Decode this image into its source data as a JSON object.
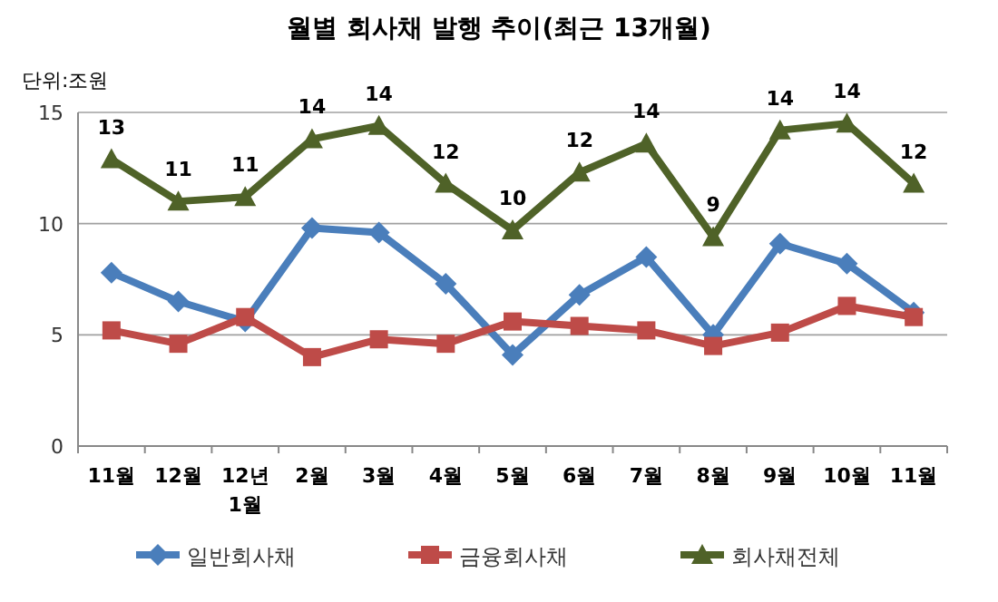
{
  "chart_data": {
    "type": "line",
    "title": "월별 회사채 발행 추이(최근 13개월)",
    "ylabel": "단위:조원",
    "categories": [
      "11월",
      "12월",
      "12년 1월",
      "2월",
      "3월",
      "4월",
      "5월",
      "6월",
      "7월",
      "8월",
      "9월",
      "10월",
      "11월"
    ],
    "ylim": [
      0,
      15
    ],
    "yticks": [
      0,
      5,
      10,
      15
    ],
    "grid": "y",
    "legend": "bottom",
    "series": [
      {
        "name": "일반회사채",
        "color": "#4a7ebb",
        "marker": "diamond",
        "values": [
          7.8,
          6.5,
          5.6,
          9.8,
          9.6,
          7.3,
          4.1,
          6.8,
          8.5,
          5.0,
          9.1,
          8.2,
          6.0
        ]
      },
      {
        "name": "금융회사채",
        "color": "#be4b48",
        "marker": "square",
        "values": [
          5.2,
          4.6,
          5.8,
          4.0,
          4.8,
          4.6,
          5.6,
          5.4,
          5.2,
          4.5,
          5.1,
          6.3,
          5.8
        ]
      },
      {
        "name": "회사채전체",
        "color": "#4f6228",
        "marker": "triangle",
        "values": [
          12.9,
          11.0,
          11.2,
          13.8,
          14.4,
          11.8,
          9.7,
          12.3,
          13.6,
          9.4,
          14.2,
          14.5,
          11.8
        ],
        "value_labels": [
          "13",
          "11",
          "11",
          "14",
          "14",
          "12",
          "10",
          "12",
          "14",
          "9",
          "14",
          "14",
          "12"
        ]
      }
    ]
  }
}
